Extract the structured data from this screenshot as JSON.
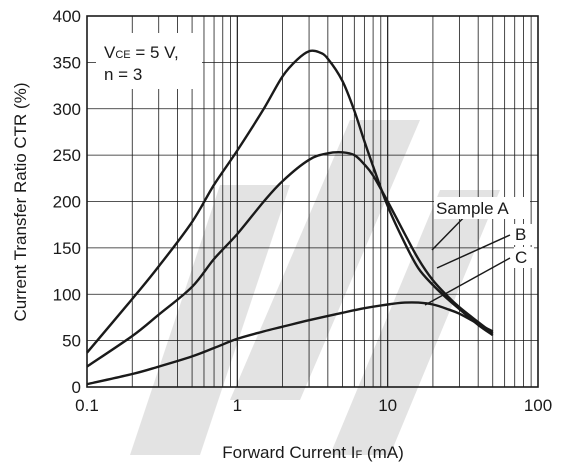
{
  "chart_data": {
    "type": "line",
    "xscale": "log",
    "xlim": [
      0.1,
      100
    ],
    "ylim": [
      0,
      400
    ],
    "grid": true,
    "xticks": [
      "0.1",
      "1",
      "10",
      "100"
    ],
    "yticks": [
      "0",
      "50",
      "100",
      "150",
      "200",
      "250",
      "300",
      "350",
      "400"
    ],
    "xlabel": {
      "main": "Forward Current  I",
      "sub": "F",
      "unit": " (mA)"
    },
    "ylabel": "Current Transfer Ratio  CTR (%)",
    "conditions": {
      "line1_prefix": "V",
      "line1_sub": "CE",
      "line1_rest": " = 5 V,",
      "line2": "n = 3"
    },
    "watermark_color": "#e3e3e3",
    "series": [
      {
        "name": "Sample A",
        "x": [
          0.1,
          0.2,
          0.3,
          0.5,
          0.7,
          1,
          1.5,
          2,
          2.5,
          3,
          3.5,
          4,
          5,
          6,
          7,
          8,
          10,
          13,
          16,
          20,
          25,
          30,
          40,
          50
        ],
        "y": [
          37,
          95,
          130,
          178,
          218,
          255,
          300,
          335,
          353,
          362,
          361,
          354,
          330,
          298,
          265,
          238,
          195,
          155,
          128,
          110,
          95,
          84,
          67,
          56
        ]
      },
      {
        "name": "B",
        "x": [
          0.1,
          0.2,
          0.3,
          0.5,
          0.7,
          1,
          1.5,
          2,
          3,
          4,
          5,
          6,
          7,
          8,
          10,
          13,
          16,
          20,
          25,
          30,
          40,
          50
        ],
        "y": [
          22,
          55,
          78,
          108,
          138,
          165,
          200,
          222,
          245,
          252,
          253,
          250,
          240,
          228,
          200,
          165,
          138,
          115,
          98,
          86,
          70,
          58
        ]
      },
      {
        "name": "C",
        "x": [
          0.1,
          0.2,
          0.3,
          0.5,
          0.7,
          1,
          1.5,
          2,
          3,
          5,
          7,
          10,
          13,
          16,
          20,
          25,
          30,
          40,
          50
        ],
        "y": [
          3,
          14,
          22,
          33,
          42,
          52,
          60,
          65,
          72,
          80,
          85,
          89,
          91,
          91,
          89,
          84,
          79,
          68,
          60
        ]
      }
    ]
  }
}
